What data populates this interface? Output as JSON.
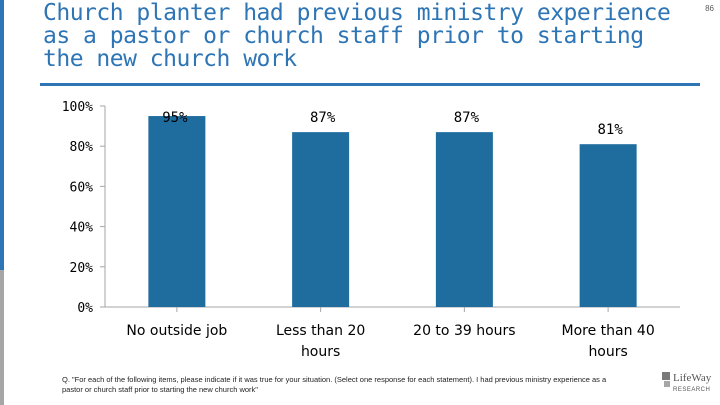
{
  "page": {
    "title": "Church planter had previous ministry experience as a pastor or church staff prior to starting the new church work",
    "page_number": "86",
    "footnote": "Q. \"For each of the following items, please indicate if it was true for your situation. (Select one response for each statement). I had previous ministry experience as a pastor or church staff prior to starting the new church work\"",
    "logo_text": "LifeWay RESEARCH"
  },
  "colors": {
    "bar": "#1f6c9f",
    "title": "#2e75b6",
    "axis": "#a6a6a6"
  },
  "chart_data": {
    "type": "bar",
    "categories": [
      "No outside job",
      "Less than 20 hours",
      "20 to 39 hours",
      "More than 40 hours"
    ],
    "values": [
      95,
      87,
      87,
      81
    ],
    "data_labels": [
      "95%",
      "87%",
      "87%",
      "81%"
    ],
    "yticks": [
      "0%",
      "20%",
      "40%",
      "60%",
      "80%",
      "100%"
    ],
    "ylim": [
      0,
      100
    ],
    "grid": false,
    "legend": "none",
    "title": "",
    "xlabel": "",
    "ylabel": ""
  }
}
